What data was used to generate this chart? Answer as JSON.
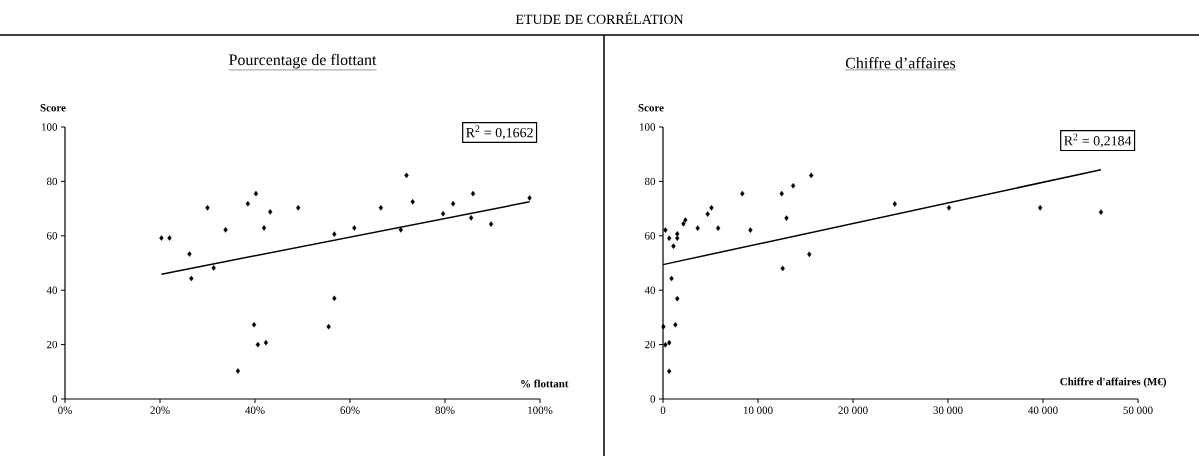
{
  "chart_data": [
    {
      "type": "other",
      "title": "ETUDE DE CORRÉLATION"
    },
    {
      "type": "scatter",
      "title": "Pourcentage de flottant",
      "xlabel": "% flottant",
      "ylabel": "Score",
      "grid": false,
      "xlim": [
        0,
        100
      ],
      "xticks": [
        {
          "value": 0,
          "label": "0%"
        },
        {
          "value": 20,
          "label": "20%"
        },
        {
          "value": 40,
          "label": "40%"
        },
        {
          "value": 60,
          "label": "60%"
        },
        {
          "value": 80,
          "label": "80%"
        },
        {
          "value": 100,
          "label": "100%"
        }
      ],
      "ylim": [
        0,
        100
      ],
      "yticks": [
        0,
        20,
        40,
        60,
        80,
        100
      ],
      "annotations": [
        "R$^{2}$ = 0,1662"
      ],
      "series": [
        {
          "type": "scatter",
          "marker": "diamond",
          "color": "#000000",
          "x": [
            20.3,
            22.0,
            26.2,
            26.6,
            30.0,
            31.3,
            33.8,
            36.4,
            38.5,
            40.2,
            39.8,
            40.6,
            41.9,
            42.3,
            43.2,
            49.1,
            55.5,
            56.7,
            56.7,
            60.9,
            66.5,
            70.7,
            71.9,
            73.2,
            79.6,
            81.7,
            85.5,
            85.9,
            89.7,
            97.8
          ],
          "values": [
            59.2,
            59.2,
            53.3,
            44.3,
            70.3,
            48.2,
            62.2,
            10.3,
            71.8,
            75.5,
            27.3,
            20.0,
            62.9,
            20.7,
            68.8,
            70.3,
            26.6,
            60.6,
            37.0,
            62.9,
            70.3,
            62.2,
            82.2,
            72.5,
            68.1,
            71.8,
            66.6,
            75.5,
            64.3,
            73.9
          ]
        },
        {
          "type": "line",
          "color": "#000000",
          "x": [
            20.3,
            97.8
          ],
          "values": [
            45.9,
            72.5
          ]
        }
      ]
    },
    {
      "type": "scatter",
      "title": "Chiffre d’affaires",
      "xlabel": "Chiffre d'affaires (M€)",
      "ylabel": "Score",
      "grid": false,
      "xlim": [
        0,
        50000
      ],
      "xticks": [
        0,
        {
          "value": 10000,
          "label": "10 000"
        },
        {
          "value": 20000,
          "label": "20 000"
        },
        {
          "value": 30000,
          "label": "30 000"
        },
        {
          "value": 40000,
          "label": "40 000"
        },
        {
          "value": 50000,
          "label": "50 000"
        }
      ],
      "ylim": [
        0,
        100
      ],
      "yticks": [
        0,
        20,
        40,
        60,
        80,
        100
      ],
      "annotations": [
        "R$^{2}$ = 0,2184"
      ],
      "series": [
        {
          "type": "scatter",
          "marker": "diamond",
          "color": "#000000",
          "x": [
            40,
            250,
            650,
            650,
            250,
            650,
            900,
            1100,
            1300,
            1500,
            1500,
            1500,
            2150,
            2350,
            3650,
            4700,
            5100,
            5800,
            8350,
            9200,
            12500,
            12600,
            13000,
            13700,
            15400,
            15600,
            24400,
            30100,
            39700,
            46100
          ],
          "values": [
            26.6,
            62.1,
            59.1,
            20.7,
            19.9,
            10.2,
            44.3,
            56.2,
            27.3,
            60.7,
            59.1,
            36.9,
            64.4,
            65.8,
            62.8,
            68.0,
            70.3,
            62.8,
            75.5,
            62.1,
            75.5,
            48.0,
            66.5,
            78.4,
            53.2,
            82.2,
            71.7,
            70.3,
            70.3,
            68.7
          ]
        },
        {
          "type": "line",
          "color": "#000000",
          "x": [
            0,
            46100
          ],
          "values": [
            49.4,
            84.3
          ]
        }
      ]
    }
  ]
}
